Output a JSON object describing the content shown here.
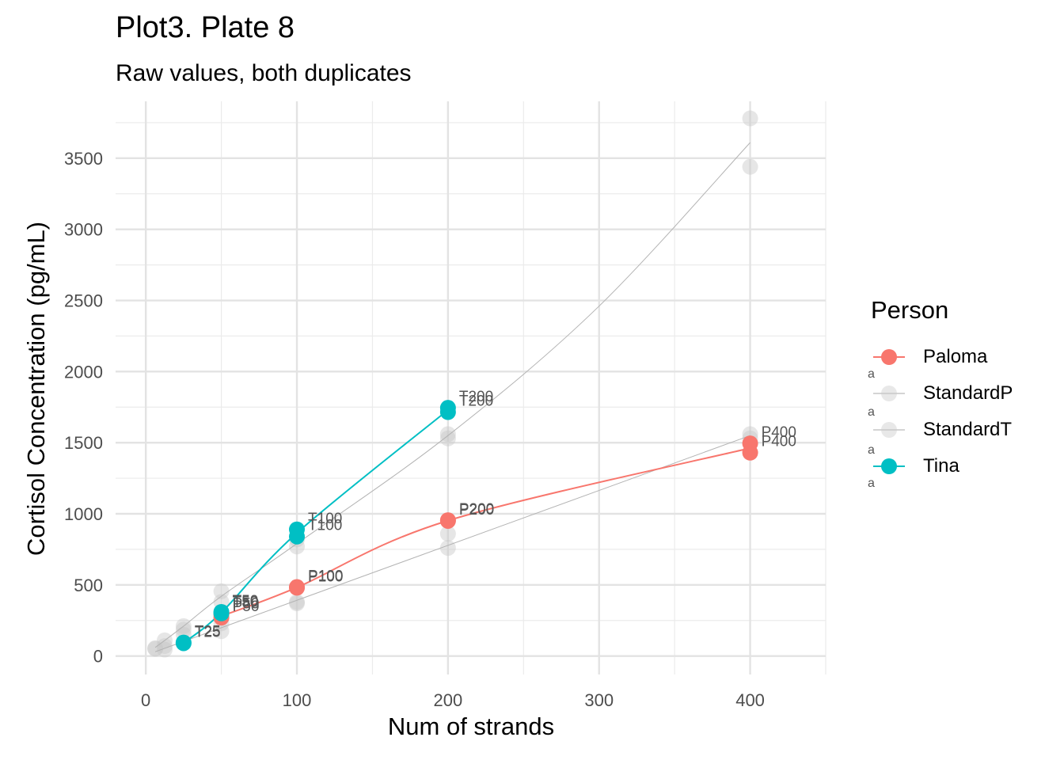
{
  "chart_data": {
    "type": "scatter",
    "title": "Plot3. Plate 8",
    "subtitle": "Raw values, both duplicates",
    "xlabel": "Num of strands",
    "ylabel": "Cortisol Concentration (pg/mL)",
    "xlim": [
      -20,
      450
    ],
    "ylim": [
      -130,
      3900
    ],
    "x_ticks": [
      0,
      100,
      200,
      300,
      400
    ],
    "y_ticks": [
      0,
      500,
      1000,
      1500,
      2000,
      2500,
      3000,
      3500
    ],
    "grid": true,
    "legend": {
      "title": "Person",
      "placement": "right",
      "entries": [
        "Paloma",
        "StandardP",
        "StandardT",
        "Tina"
      ]
    },
    "series": [
      {
        "name": "Paloma",
        "color": "#F8766D",
        "points": [
          {
            "x": 50,
            "y": 270,
            "label": "P50"
          },
          {
            "x": 50,
            "y": 290,
            "label": "P50"
          },
          {
            "x": 100,
            "y": 480,
            "label": "P100"
          },
          {
            "x": 100,
            "y": 485,
            "label": "P100"
          },
          {
            "x": 200,
            "y": 950,
            "label": "P200"
          },
          {
            "x": 200,
            "y": 955,
            "label": "P200"
          },
          {
            "x": 400,
            "y": 1430,
            "label": "P400"
          },
          {
            "x": 400,
            "y": 1495,
            "label": "P400"
          }
        ],
        "curve": [
          [
            50,
            280
          ],
          [
            100,
            482
          ],
          [
            200,
            952
          ],
          [
            400,
            1462
          ]
        ]
      },
      {
        "name": "Tina",
        "color": "#00BFC4",
        "points": [
          {
            "x": 25,
            "y": 90,
            "label": "T25"
          },
          {
            "x": 25,
            "y": 95,
            "label": "T25"
          },
          {
            "x": 50,
            "y": 300,
            "label": "T50"
          },
          {
            "x": 50,
            "y": 310,
            "label": "T50"
          },
          {
            "x": 100,
            "y": 840,
            "label": "T100"
          },
          {
            "x": 100,
            "y": 890,
            "label": "T100"
          },
          {
            "x": 200,
            "y": 1715,
            "label": "T200"
          },
          {
            "x": 200,
            "y": 1745,
            "label": "T200"
          }
        ],
        "curve": [
          [
            25,
            92
          ],
          [
            50,
            305
          ],
          [
            100,
            865
          ],
          [
            200,
            1730
          ]
        ]
      },
      {
        "name": "StandardP",
        "color": "#bbbbbb",
        "points": [
          {
            "x": 6.25,
            "y": 55
          },
          {
            "x": 12.5,
            "y": 70
          },
          {
            "x": 12.5,
            "y": 110
          },
          {
            "x": 25,
            "y": 150
          },
          {
            "x": 25,
            "y": 210
          },
          {
            "x": 50,
            "y": 175
          },
          {
            "x": 50,
            "y": 230
          },
          {
            "x": 100,
            "y": 370
          },
          {
            "x": 100,
            "y": 380
          },
          {
            "x": 200,
            "y": 760
          },
          {
            "x": 200,
            "y": 860
          },
          {
            "x": 400,
            "y": 1530
          },
          {
            "x": 400,
            "y": 1560
          }
        ],
        "curve": [
          [
            6.25,
            30
          ],
          [
            400,
            1550
          ]
        ]
      },
      {
        "name": "StandardT",
        "color": "#bbbbbb",
        "points": [
          {
            "x": 6.25,
            "y": 50
          },
          {
            "x": 12.5,
            "y": 45
          },
          {
            "x": 25,
            "y": 185
          },
          {
            "x": 50,
            "y": 380
          },
          {
            "x": 50,
            "y": 455
          },
          {
            "x": 100,
            "y": 770
          },
          {
            "x": 100,
            "y": 820
          },
          {
            "x": 200,
            "y": 1530
          },
          {
            "x": 200,
            "y": 1560
          },
          {
            "x": 400,
            "y": 3440
          },
          {
            "x": 400,
            "y": 3780
          }
        ],
        "curve": [
          [
            6.25,
            60
          ],
          [
            25,
            210
          ],
          [
            50,
            420
          ],
          [
            100,
            790
          ],
          [
            200,
            1550
          ],
          [
            300,
            2460
          ],
          [
            400,
            3610
          ]
        ]
      }
    ]
  }
}
